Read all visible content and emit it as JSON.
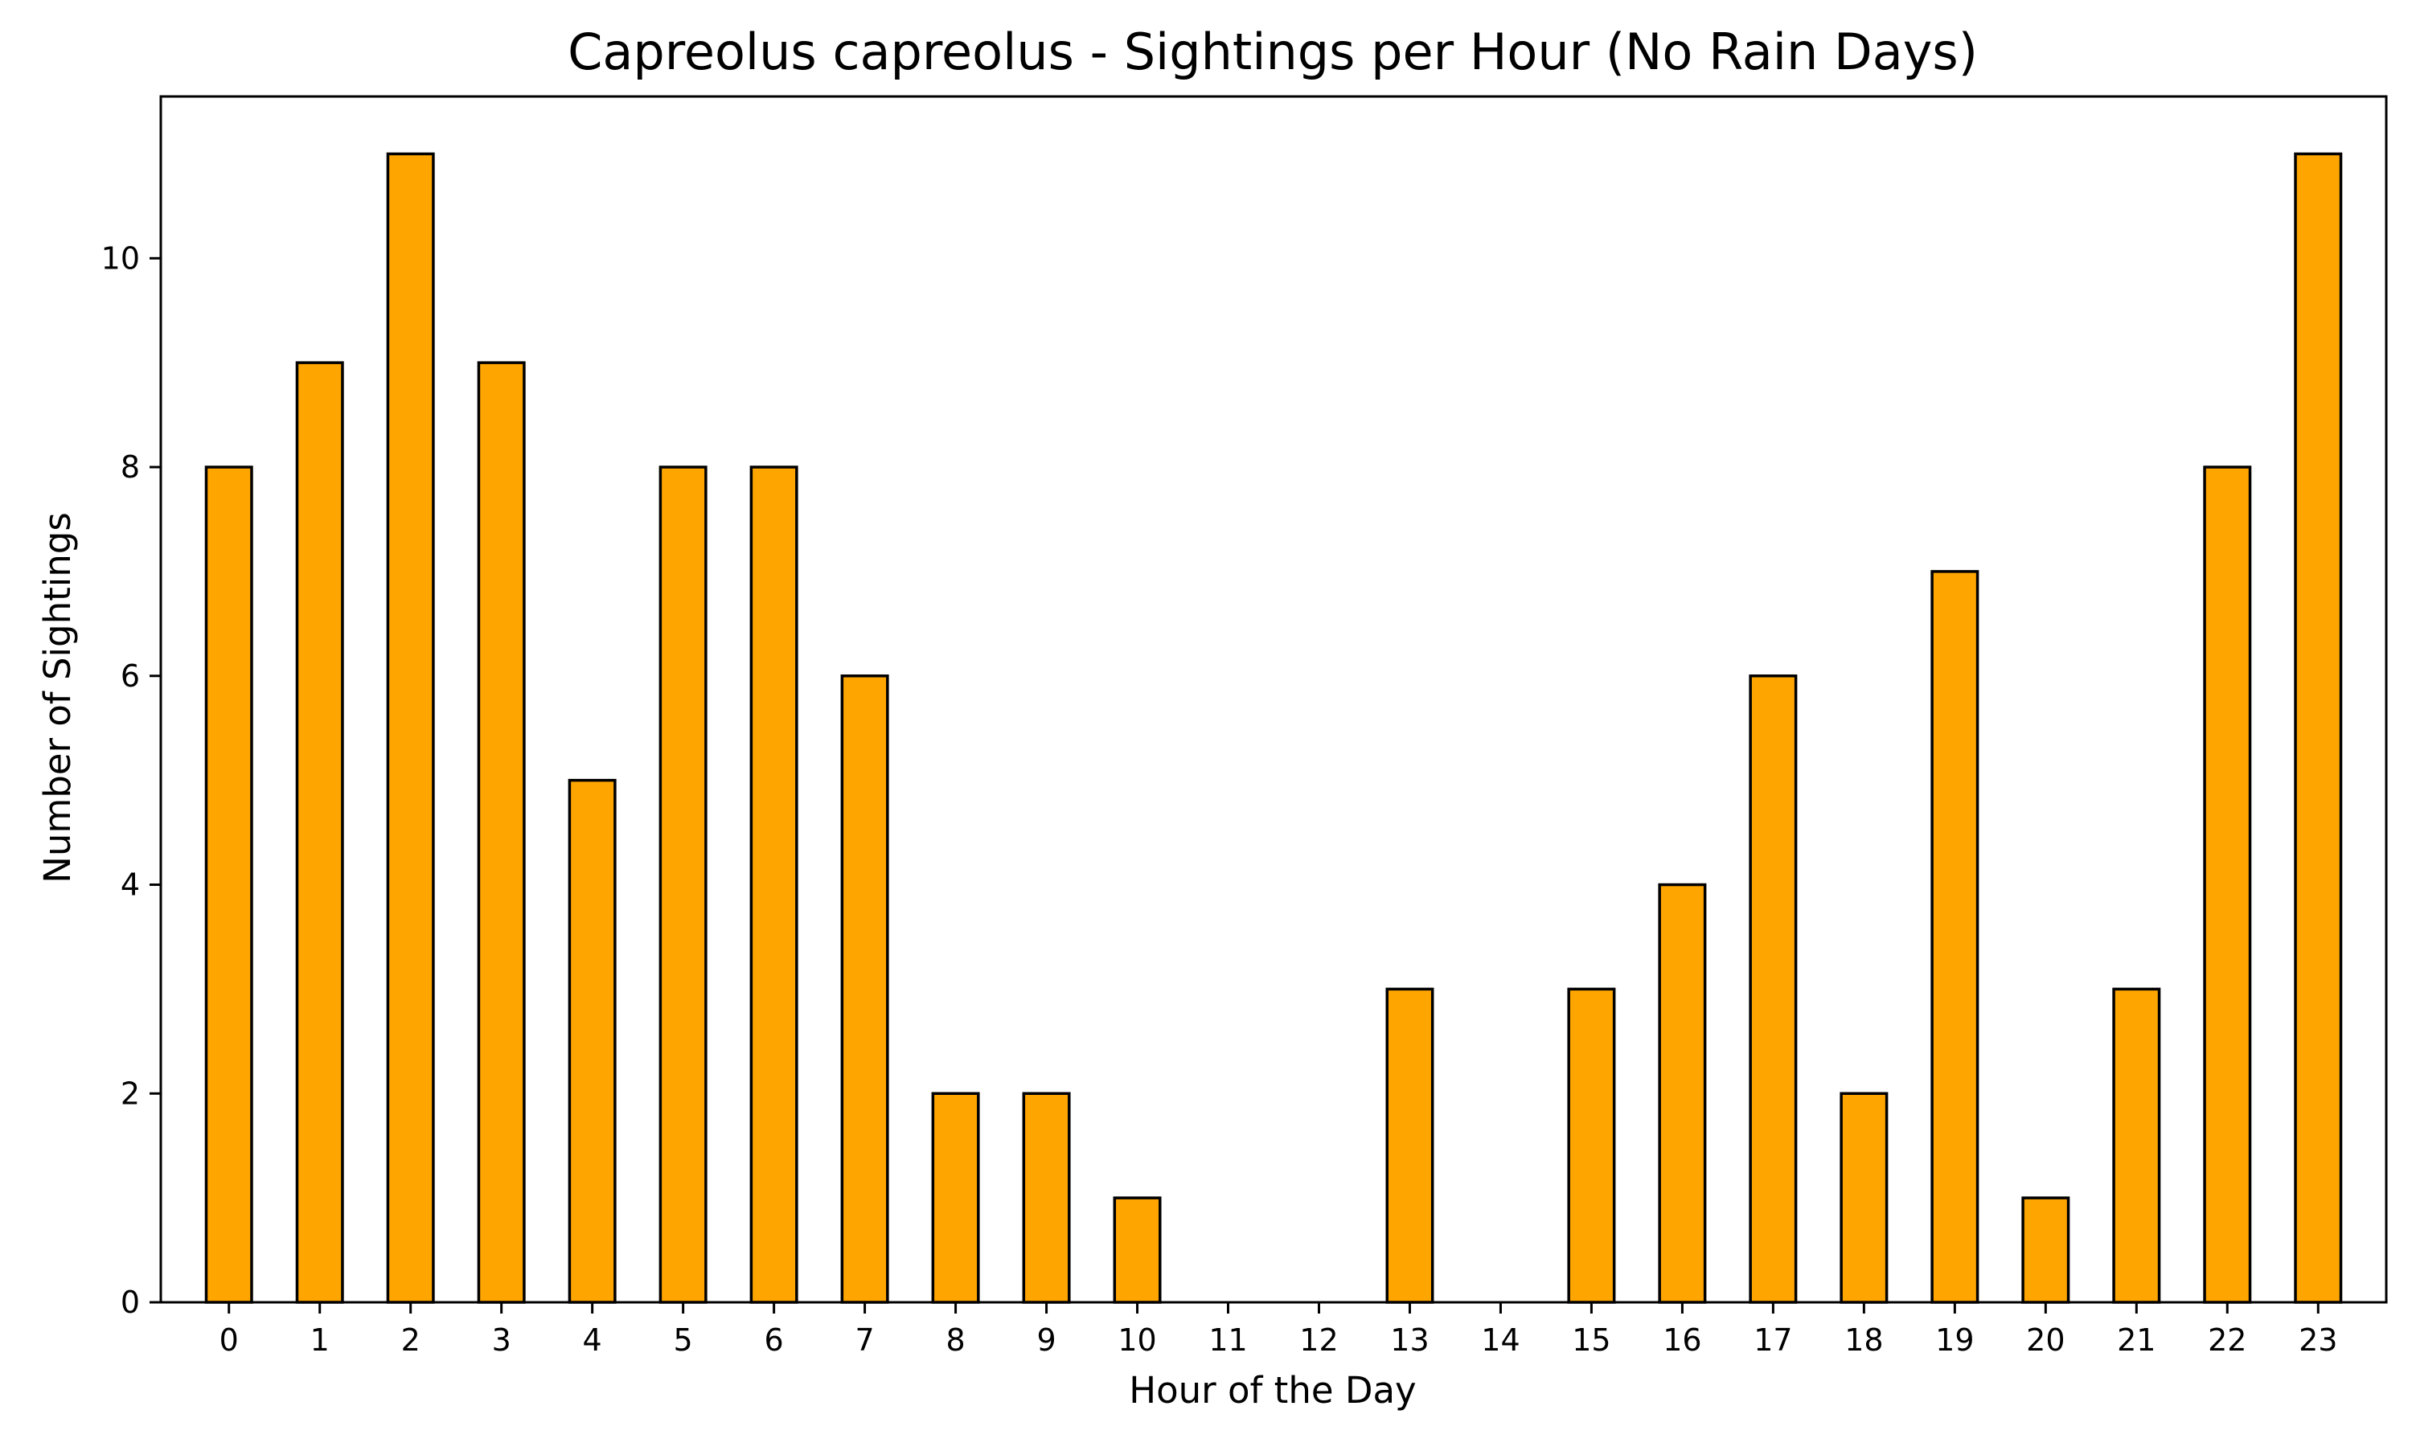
{
  "chart_data": {
    "type": "bar",
    "title": "Capreolus capreolus - Sightings per Hour (No Rain Days)",
    "xlabel": "Hour of the Day",
    "ylabel": "Number of Sightings",
    "categories": [
      "0",
      "1",
      "2",
      "3",
      "4",
      "5",
      "6",
      "7",
      "8",
      "9",
      "10",
      "11",
      "12",
      "13",
      "14",
      "15",
      "16",
      "17",
      "18",
      "19",
      "20",
      "21",
      "22",
      "23"
    ],
    "values": [
      8,
      9,
      11,
      9,
      5,
      8,
      8,
      6,
      2,
      2,
      1,
      0,
      0,
      3,
      0,
      3,
      4,
      6,
      2,
      7,
      1,
      3,
      8,
      11
    ],
    "yticks": [
      "0",
      "2",
      "4",
      "6",
      "8",
      "10"
    ],
    "ylim": [
      0,
      11.55
    ],
    "grid": false,
    "bar_color": "#FFA500",
    "edge_color": "#000000"
  }
}
